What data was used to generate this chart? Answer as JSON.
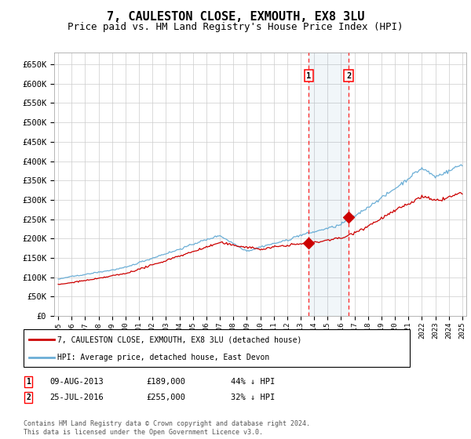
{
  "title": "7, CAULESTON CLOSE, EXMOUTH, EX8 3LU",
  "subtitle": "Price paid vs. HM Land Registry's House Price Index (HPI)",
  "title_fontsize": 11,
  "subtitle_fontsize": 9,
  "ylim": [
    0,
    680000
  ],
  "yticks": [
    0,
    50000,
    100000,
    150000,
    200000,
    250000,
    300000,
    350000,
    400000,
    450000,
    500000,
    550000,
    600000,
    650000
  ],
  "ytick_labels": [
    "£0",
    "£50K",
    "£100K",
    "£150K",
    "£200K",
    "£250K",
    "£300K",
    "£350K",
    "£400K",
    "£450K",
    "£500K",
    "£550K",
    "£600K",
    "£650K"
  ],
  "bg_color": "#ffffff",
  "grid_color": "#cccccc",
  "hpi_color": "#6baed6",
  "price_color": "#cc0000",
  "transaction1_date": 2013.6,
  "transaction1_value": 189000,
  "transaction1_label": "09-AUG-2013",
  "transaction1_price": "£189,000",
  "transaction1_pct": "44% ↓ HPI",
  "transaction2_date": 2016.56,
  "transaction2_value": 255000,
  "transaction2_label": "25-JUL-2016",
  "transaction2_price": "£255,000",
  "transaction2_pct": "32% ↓ HPI",
  "legend_line1": "7, CAULESTON CLOSE, EXMOUTH, EX8 3LU (detached house)",
  "legend_line2": "HPI: Average price, detached house, East Devon",
  "footnote": "Contains HM Land Registry data © Crown copyright and database right 2024.\nThis data is licensed under the Open Government Licence v3.0.",
  "start_year": 1995,
  "end_year": 2025
}
